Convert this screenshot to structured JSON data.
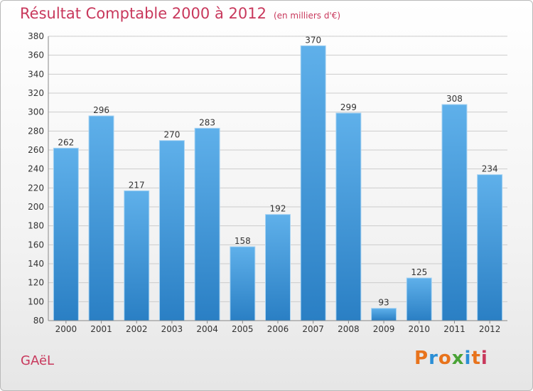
{
  "header": {
    "title": "Résultat Comptable 2000 à 2012",
    "subtitle": "(en milliers d'€)"
  },
  "footer": {
    "town": "GAëL",
    "logo": "Proxiti"
  },
  "colors": {
    "title": "#c8385c",
    "bar_top": "#5fb0ea",
    "bar_bottom": "#2a7fc4",
    "grid": "#cccccc"
  },
  "chart_data": {
    "type": "bar",
    "title": "Résultat Comptable 2000 à 2012",
    "subtitle": "(en milliers d'€)",
    "xlabel": "",
    "ylabel": "",
    "categories": [
      "2000",
      "2001",
      "2002",
      "2003",
      "2004",
      "2005",
      "2006",
      "2007",
      "2008",
      "2009",
      "2010",
      "2011",
      "2012"
    ],
    "values": [
      262,
      296,
      217,
      270,
      283,
      158,
      192,
      370,
      299,
      93,
      125,
      308,
      234
    ],
    "ylim": [
      80,
      380
    ],
    "yticks": [
      80,
      100,
      120,
      140,
      160,
      180,
      200,
      220,
      240,
      260,
      280,
      300,
      320,
      340,
      360,
      380
    ],
    "grid": true,
    "legend": "none"
  }
}
